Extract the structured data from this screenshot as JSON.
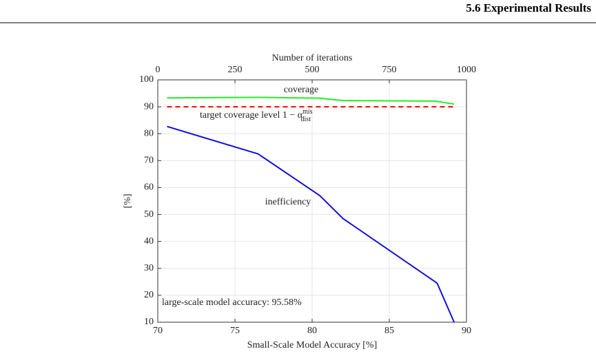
{
  "header": {
    "title": "5.6 Experimental Results"
  },
  "chart_data": {
    "type": "line",
    "xlabel": "Small-Scale Model Accuracy [%]",
    "ylabel": "[%]",
    "x2label": "Number of iterations",
    "xlim": [
      70,
      90
    ],
    "xticks": [
      70,
      75,
      80,
      85,
      90
    ],
    "x2lim": [
      0,
      1000
    ],
    "x2ticks": [
      0,
      250,
      500,
      750,
      1000
    ],
    "ylim": [
      10,
      100
    ],
    "yticks": [
      10,
      20,
      30,
      40,
      50,
      60,
      70,
      80,
      90,
      100
    ],
    "grid": true,
    "series": [
      {
        "name": "coverage",
        "color": "#22ee22",
        "x": [
          70.6,
          76.5,
          80.5,
          82,
          88,
          89.2
        ],
        "values": [
          93.3,
          93.5,
          93.2,
          92.3,
          92.1,
          91
        ]
      },
      {
        "name": "target coverage level 1 − α",
        "name_superscript": "mis",
        "name_subscript": "dist",
        "color": "#ff0000",
        "dash": true,
        "x": [
          70.6,
          89.2
        ],
        "values": [
          90,
          90
        ]
      },
      {
        "name": "inefficiency",
        "color": "#1010dd",
        "x": [
          70.6,
          76.5,
          80.5,
          82,
          88.1,
          89.2
        ],
        "values": [
          82.7,
          72.5,
          57,
          48.5,
          24.5,
          10
        ]
      }
    ],
    "annotations": [
      "large-scale model accuracy: 95.58%"
    ]
  }
}
